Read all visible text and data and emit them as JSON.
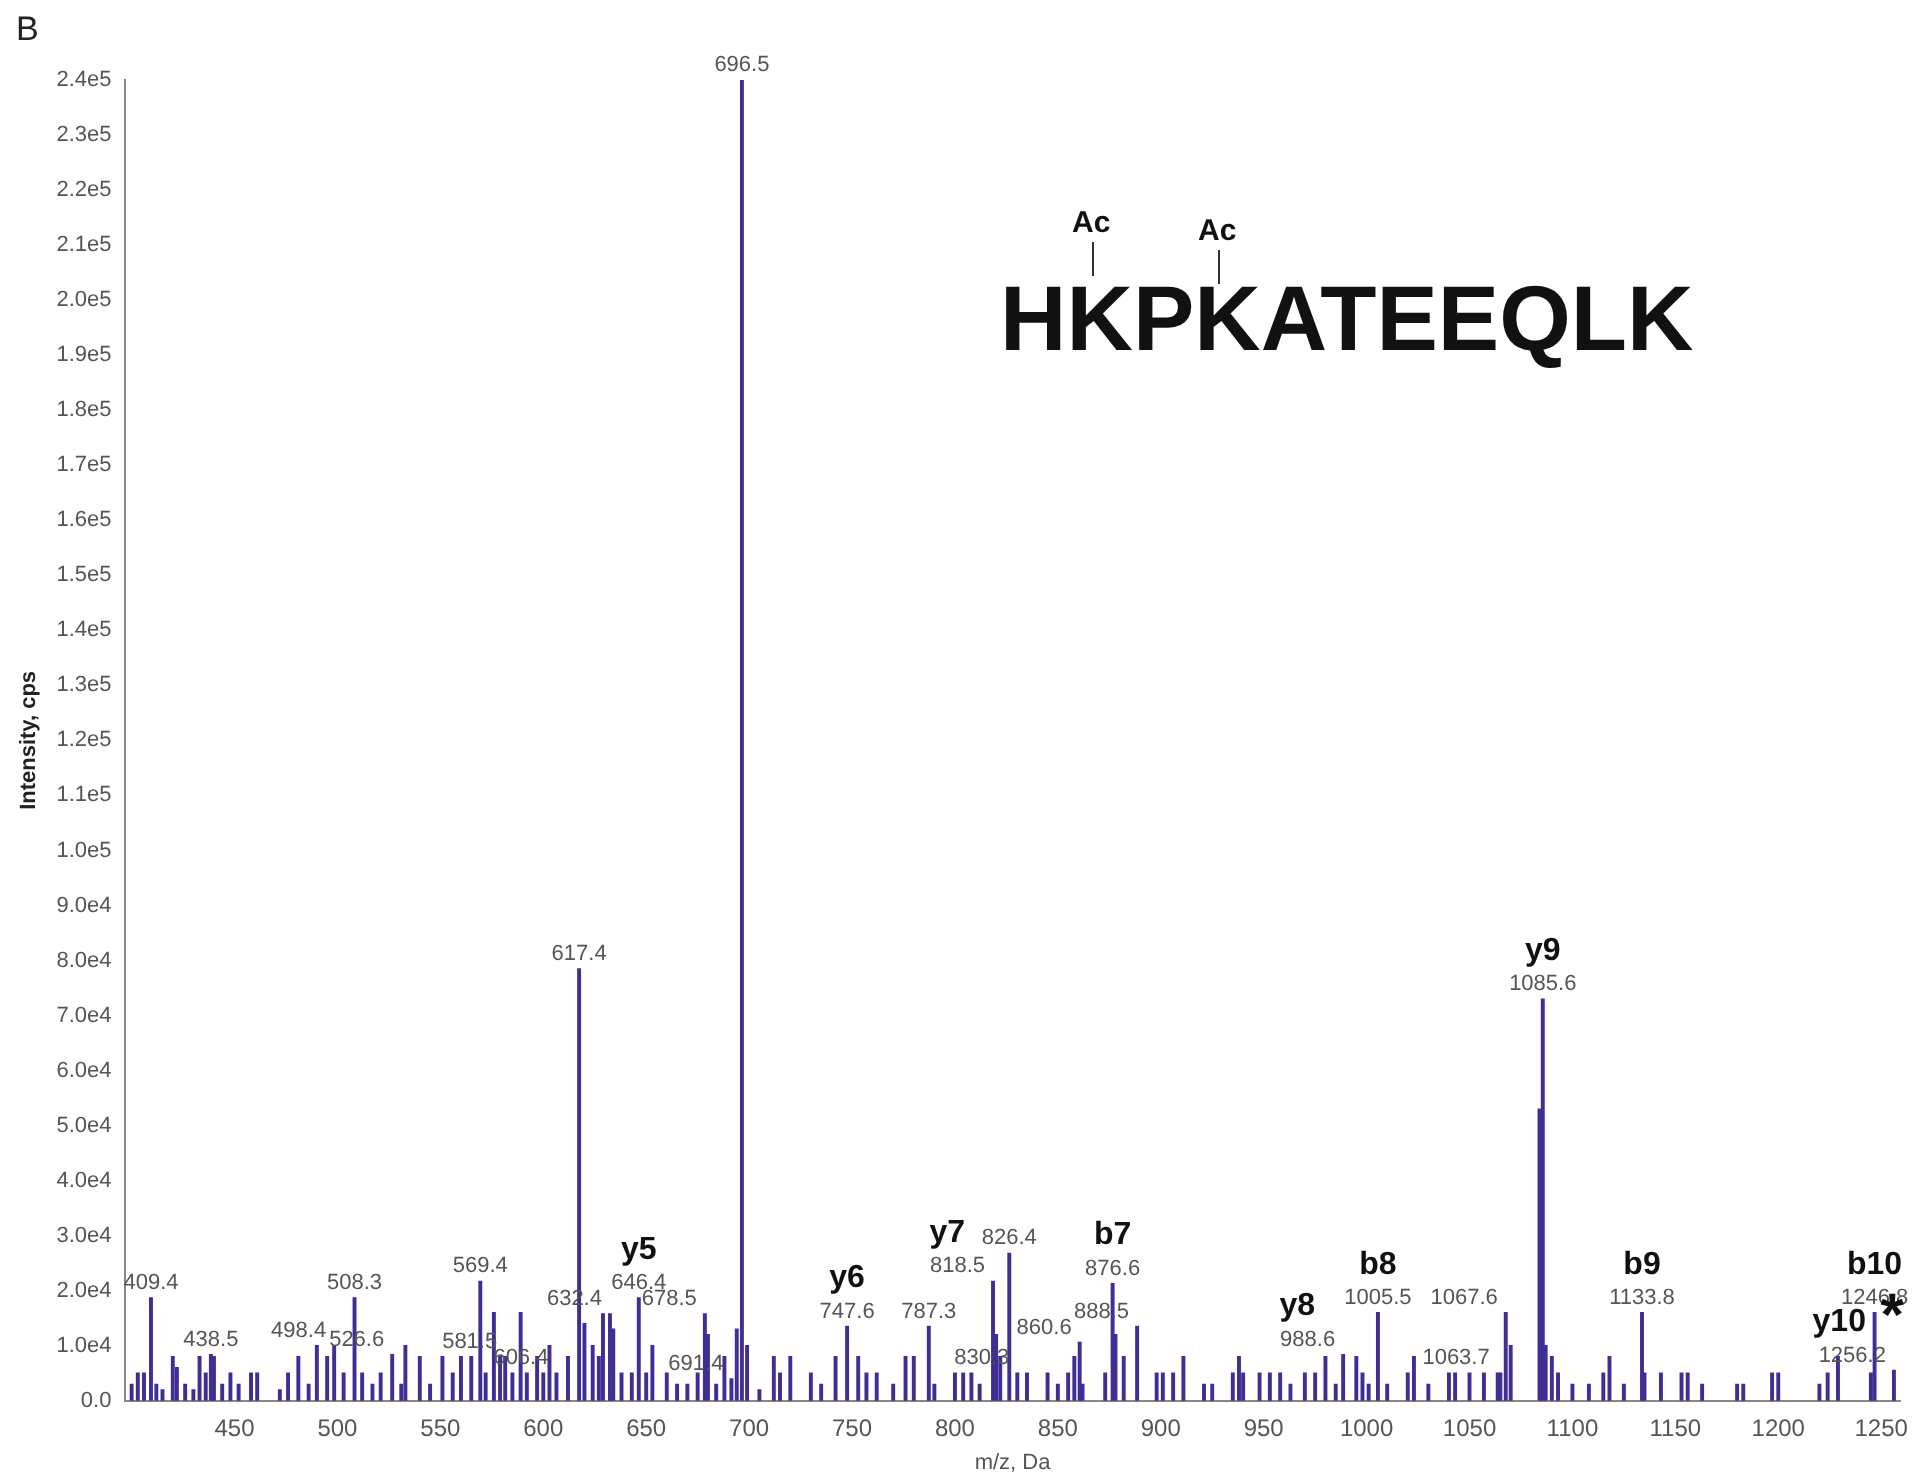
{
  "chart_data": {
    "type": "bar",
    "xlabel": "m/z, Da",
    "ylabel": "Intensity, cps",
    "color": "#3d2f94",
    "x": [
      400,
      403,
      406,
      409.4,
      412,
      415,
      420,
      422,
      426,
      430,
      433,
      436,
      438.5,
      440,
      444,
      448,
      452,
      458,
      461,
      472,
      476,
      481,
      486,
      490,
      495,
      498.4,
      503,
      508.3,
      512,
      517,
      521,
      526.6,
      531,
      533,
      540,
      545,
      551,
      556,
      560,
      565,
      569.4,
      572,
      576,
      579,
      581.5,
      585,
      589,
      592,
      597,
      600,
      603,
      606.4,
      612,
      617.4,
      620,
      624,
      627,
      629,
      632.4,
      634,
      638,
      643,
      646.4,
      650,
      653,
      660,
      665,
      670,
      675,
      678.5,
      680,
      684,
      688,
      691.4,
      694,
      696.5,
      699,
      705,
      712,
      715,
      720,
      730,
      735,
      742,
      747.6,
      753,
      757,
      762,
      770,
      776,
      780,
      787.3,
      790,
      800,
      804,
      808,
      812,
      818.5,
      820,
      822,
      826.4,
      830.3,
      835,
      845,
      850,
      855,
      858,
      860.6,
      862,
      873,
      876.6,
      878,
      882,
      888.5,
      898,
      901,
      906,
      911,
      921,
      925,
      935,
      938,
      940,
      948,
      953,
      958,
      963,
      970,
      975,
      980,
      985,
      988.6,
      995,
      998,
      1001,
      1005.5,
      1010,
      1020,
      1023,
      1030,
      1040,
      1043,
      1050,
      1057,
      1063.7,
      1065,
      1067.6,
      1070,
      1084,
      1085.6,
      1087,
      1090,
      1093,
      1100,
      1108,
      1115,
      1118,
      1125,
      1133.8,
      1135,
      1143,
      1153,
      1156,
      1163,
      1180,
      1183,
      1197,
      1200,
      1220,
      1224,
      1229,
      1245,
      1246.8,
      1256.2
    ],
    "values": [
      3000,
      5000,
      5000,
      18700,
      3000,
      2000,
      8000,
      6000,
      3000,
      2000,
      8000,
      5000,
      8400,
      8000,
      3000,
      5000,
      3000,
      5000,
      5000,
      2000,
      5000,
      8000,
      3000,
      10000,
      8000,
      10000,
      5000,
      18700,
      5000,
      3000,
      5000,
      8400,
      3000,
      10000,
      8000,
      3000,
      8000,
      5000,
      8000,
      8000,
      21700,
      5000,
      16000,
      8000,
      8000,
      5000,
      16000,
      5000,
      8000,
      5000,
      10000,
      5000,
      8000,
      78500,
      14000,
      10000,
      8000,
      15800,
      15800,
      13000,
      5000,
      5000,
      18700,
      5000,
      10000,
      5000,
      3000,
      3000,
      5000,
      15800,
      12000,
      3000,
      8000,
      4000,
      13000,
      240000,
      10000,
      2000,
      8000,
      5000,
      8000,
      5000,
      3000,
      8000,
      13500,
      8000,
      5000,
      5000,
      3000,
      8000,
      8000,
      13500,
      3000,
      5000,
      5000,
      5000,
      3000,
      21700,
      12000,
      8000,
      26800,
      5000,
      5000,
      5000,
      3000,
      5000,
      8000,
      10600,
      3000,
      5000,
      21300,
      12000,
      8000,
      13500,
      5000,
      5000,
      5000,
      8000,
      3000,
      3000,
      5000,
      8000,
      5000,
      5000,
      5000,
      5000,
      3000,
      5000,
      5000,
      8000,
      3000,
      8400,
      8000,
      5000,
      3000,
      16000,
      3000,
      5000,
      8000,
      3000,
      5000,
      5000,
      5000,
      5000,
      5000,
      5000,
      16000,
      10000,
      53000,
      73000,
      10000,
      8000,
      5000,
      3000,
      3000,
      5000,
      8000,
      3000,
      16000,
      5000,
      5000,
      5000,
      5000,
      3000,
      3000,
      3000,
      5000,
      5000,
      3000,
      5000,
      8000,
      5000,
      16000,
      5500
    ],
    "xlim": [
      397,
      1259
    ],
    "xticks": [
      450,
      500,
      550,
      600,
      650,
      700,
      750,
      800,
      850,
      900,
      950,
      1000,
      1050,
      1100,
      1150,
      1200,
      1250
    ],
    "ylim": [
      0,
      240000
    ],
    "yticks": [
      {
        "value": 0,
        "label": "0.0"
      },
      {
        "value": 10000,
        "label": "1.0e4"
      },
      {
        "value": 20000,
        "label": "2.0e4"
      },
      {
        "value": 30000,
        "label": "3.0e4"
      },
      {
        "value": 40000,
        "label": "4.0e4"
      },
      {
        "value": 50000,
        "label": "5.0e4"
      },
      {
        "value": 60000,
        "label": "6.0e4"
      },
      {
        "value": 70000,
        "label": "7.0e4"
      },
      {
        "value": 80000,
        "label": "8.0e4"
      },
      {
        "value": 90000,
        "label": "9.0e4"
      },
      {
        "value": 100000,
        "label": "1.0e5"
      },
      {
        "value": 110000,
        "label": "1.1e5"
      },
      {
        "value": 120000,
        "label": "1.2e5"
      },
      {
        "value": 130000,
        "label": "1.3e5"
      },
      {
        "value": 140000,
        "label": "1.4e5"
      },
      {
        "value": 150000,
        "label": "1.5e5"
      },
      {
        "value": 160000,
        "label": "1.6e5"
      },
      {
        "value": 170000,
        "label": "1.7e5"
      },
      {
        "value": 180000,
        "label": "1.8e5"
      },
      {
        "value": 190000,
        "label": "1.9e5"
      },
      {
        "value": 200000,
        "label": "2.0e5"
      },
      {
        "value": 210000,
        "label": "2.1e5"
      },
      {
        "value": 220000,
        "label": "2.2e5"
      },
      {
        "value": 230000,
        "label": "2.3e5"
      },
      {
        "value": 240000,
        "label": "2.4e5"
      }
    ],
    "annotations": [
      "B",
      "HKPKATEEQLK",
      "Ac",
      "Ac",
      {
        "text": "409.4",
        "x": 409.4,
        "y": 18700
      },
      {
        "text": "438.5",
        "x": 438.5,
        "y": 8400
      },
      {
        "text": "498.4",
        "x": 498.4,
        "y": 10000
      },
      {
        "text": "508.3",
        "x": 508.3,
        "y": 18700
      },
      {
        "text": "526.6",
        "x": 526.6,
        "y": 8400
      },
      {
        "text": "569.4",
        "x": 569.4,
        "y": 21700
      },
      {
        "text": "581.5",
        "x": 581.5,
        "y": 8000
      },
      {
        "text": "606.4",
        "x": 606.4,
        "y": 5000
      },
      {
        "text": "617.4",
        "x": 617.4,
        "y": 78500
      },
      {
        "text": "632.4",
        "x": 632.4,
        "y": 15800
      },
      {
        "text": "646.4",
        "x": 646.4,
        "y": 18700
      },
      {
        "text": "y5",
        "x": 646.4,
        "y": 18700
      },
      {
        "text": "678.5",
        "x": 678.5,
        "y": 15800
      },
      {
        "text": "691.4",
        "x": 691.4,
        "y": 4000
      },
      {
        "text": "696.5",
        "x": 696.5,
        "y": 240000
      },
      {
        "text": "747.6",
        "x": 747.6,
        "y": 13500
      },
      {
        "text": "y6",
        "x": 747.6,
        "y": 13500
      },
      {
        "text": "787.3",
        "x": 787.3,
        "y": 13500
      },
      {
        "text": "818.5",
        "x": 818.5,
        "y": 21700
      },
      {
        "text": "y7",
        "x": 818.5,
        "y": 21700
      },
      {
        "text": "826.4",
        "x": 826.4,
        "y": 26800
      },
      {
        "text": "830.3",
        "x": 830.3,
        "y": 5000
      },
      {
        "text": "860.6",
        "x": 860.6,
        "y": 10600
      },
      {
        "text": "876.6",
        "x": 876.6,
        "y": 21300
      },
      {
        "text": "b7",
        "x": 876.6,
        "y": 21300
      },
      {
        "text": "888.5",
        "x": 888.5,
        "y": 13500
      },
      {
        "text": "988.6",
        "x": 988.6,
        "y": 8400
      },
      {
        "text": "y8",
        "x": 988.6,
        "y": 8400
      },
      {
        "text": "1005.5",
        "x": 1005.5,
        "y": 16000
      },
      {
        "text": "b8",
        "x": 1005.5,
        "y": 16000
      },
      {
        "text": "1063.7",
        "x": 1063.7,
        "y": 5000
      },
      {
        "text": "1067.6",
        "x": 1067.6,
        "y": 16000
      },
      {
        "text": "1085.6",
        "x": 1085.6,
        "y": 73000
      },
      {
        "text": "y9",
        "x": 1085.6,
        "y": 73000
      },
      {
        "text": "1133.8",
        "x": 1133.8,
        "y": 16000
      },
      {
        "text": "b9",
        "x": 1133.8,
        "y": 16000
      },
      {
        "text": "1246.8",
        "x": 1246.8,
        "y": 16000
      },
      {
        "text": "b10",
        "x": 1246.8,
        "y": 16000
      },
      {
        "text": "*",
        "x": 1246.8,
        "y": 16000
      },
      {
        "text": "1256.2",
        "x": 1256.2,
        "y": 5500
      },
      {
        "text": "y10",
        "x": 1256.2,
        "y": 5500
      }
    ],
    "grid": false,
    "legend": false
  }
}
